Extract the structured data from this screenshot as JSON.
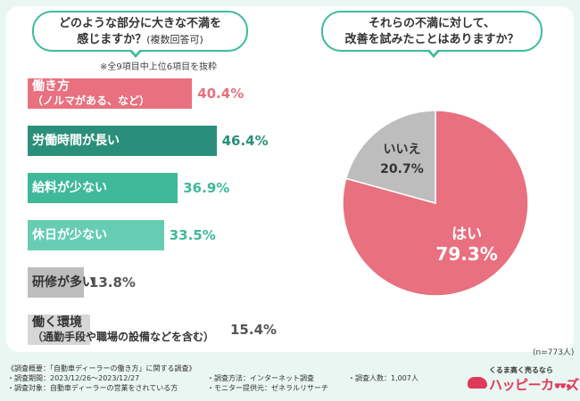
{
  "left_question": {
    "line1": "どのような部分に大きな不満を",
    "line2": "感じますか？",
    "line2_sub": "(複数回答可)",
    "note": "※全9項目中上位6項目を抜粋"
  },
  "right_question": {
    "line1": "それらの不満に対して、",
    "line2": "改善を試みたことはありますか？"
  },
  "chart_data": [
    {
      "type": "bar",
      "orientation": "horizontal",
      "title": "どのような部分に大きな不満を感じますか？(複数回答可)",
      "categories": [
        "働き方（ノルマがある、など）",
        "労働時間が長い",
        "給料が少ない",
        "休日が少ない",
        "研修が多い",
        "働く環境（通勤手段や職場の設備などを含む）"
      ],
      "category_lines": [
        [
          "働き方",
          "（ノルマがある、など）"
        ],
        [
          "労働時間が長い"
        ],
        [
          "給料が少ない"
        ],
        [
          "休日が少ない"
        ],
        [
          "研修が多い"
        ],
        [
          "働く環境",
          "（通勤手段や職場の設備などを含む）"
        ]
      ],
      "values": [
        40.4,
        46.4,
        36.9,
        33.5,
        13.8,
        15.4
      ],
      "value_labels": [
        "40.4%",
        "46.4%",
        "36.9%",
        "33.5%",
        "13.8%",
        "15.4%"
      ],
      "colors": [
        "#e8707f",
        "#2a8f7a",
        "#3fb99a",
        "#66cdb3",
        "#bdbdbd",
        "#d6d6d6"
      ],
      "label_colors": [
        "#e8707f",
        "#2a8f7a",
        "#3fb99a",
        "#3fb99a",
        "#555555",
        "#555555"
      ],
      "xlim": [
        0,
        50
      ]
    },
    {
      "type": "pie",
      "title": "それらの不満に対して、改善を試みたことはありますか？",
      "categories": [
        "はい",
        "いいえ"
      ],
      "values": [
        79.3,
        20.7
      ],
      "value_labels": [
        "79.3%",
        "20.7%"
      ],
      "colors": [
        "#e8707f",
        "#bdbdbd"
      ],
      "sample_size": "(n=773人)"
    }
  ],
  "footer": {
    "col1": [
      "《調査概要：「自動車ディーラーの働き方」に関する調査》",
      "・調査期間：2023/12/26～2023/12/27",
      "・調査対象：自動車ディーラーの営業をされている方"
    ],
    "col2": [
      "・調査方法：インターネット調査",
      "・モニター提供元：ゼネラルリサーチ"
    ],
    "col3": [
      "・調査人数：1,007人"
    ],
    "logo_tagline": "くるま高く売るなら",
    "logo_name": "ハッピーカーズ",
    "logo_suffix": "®"
  }
}
